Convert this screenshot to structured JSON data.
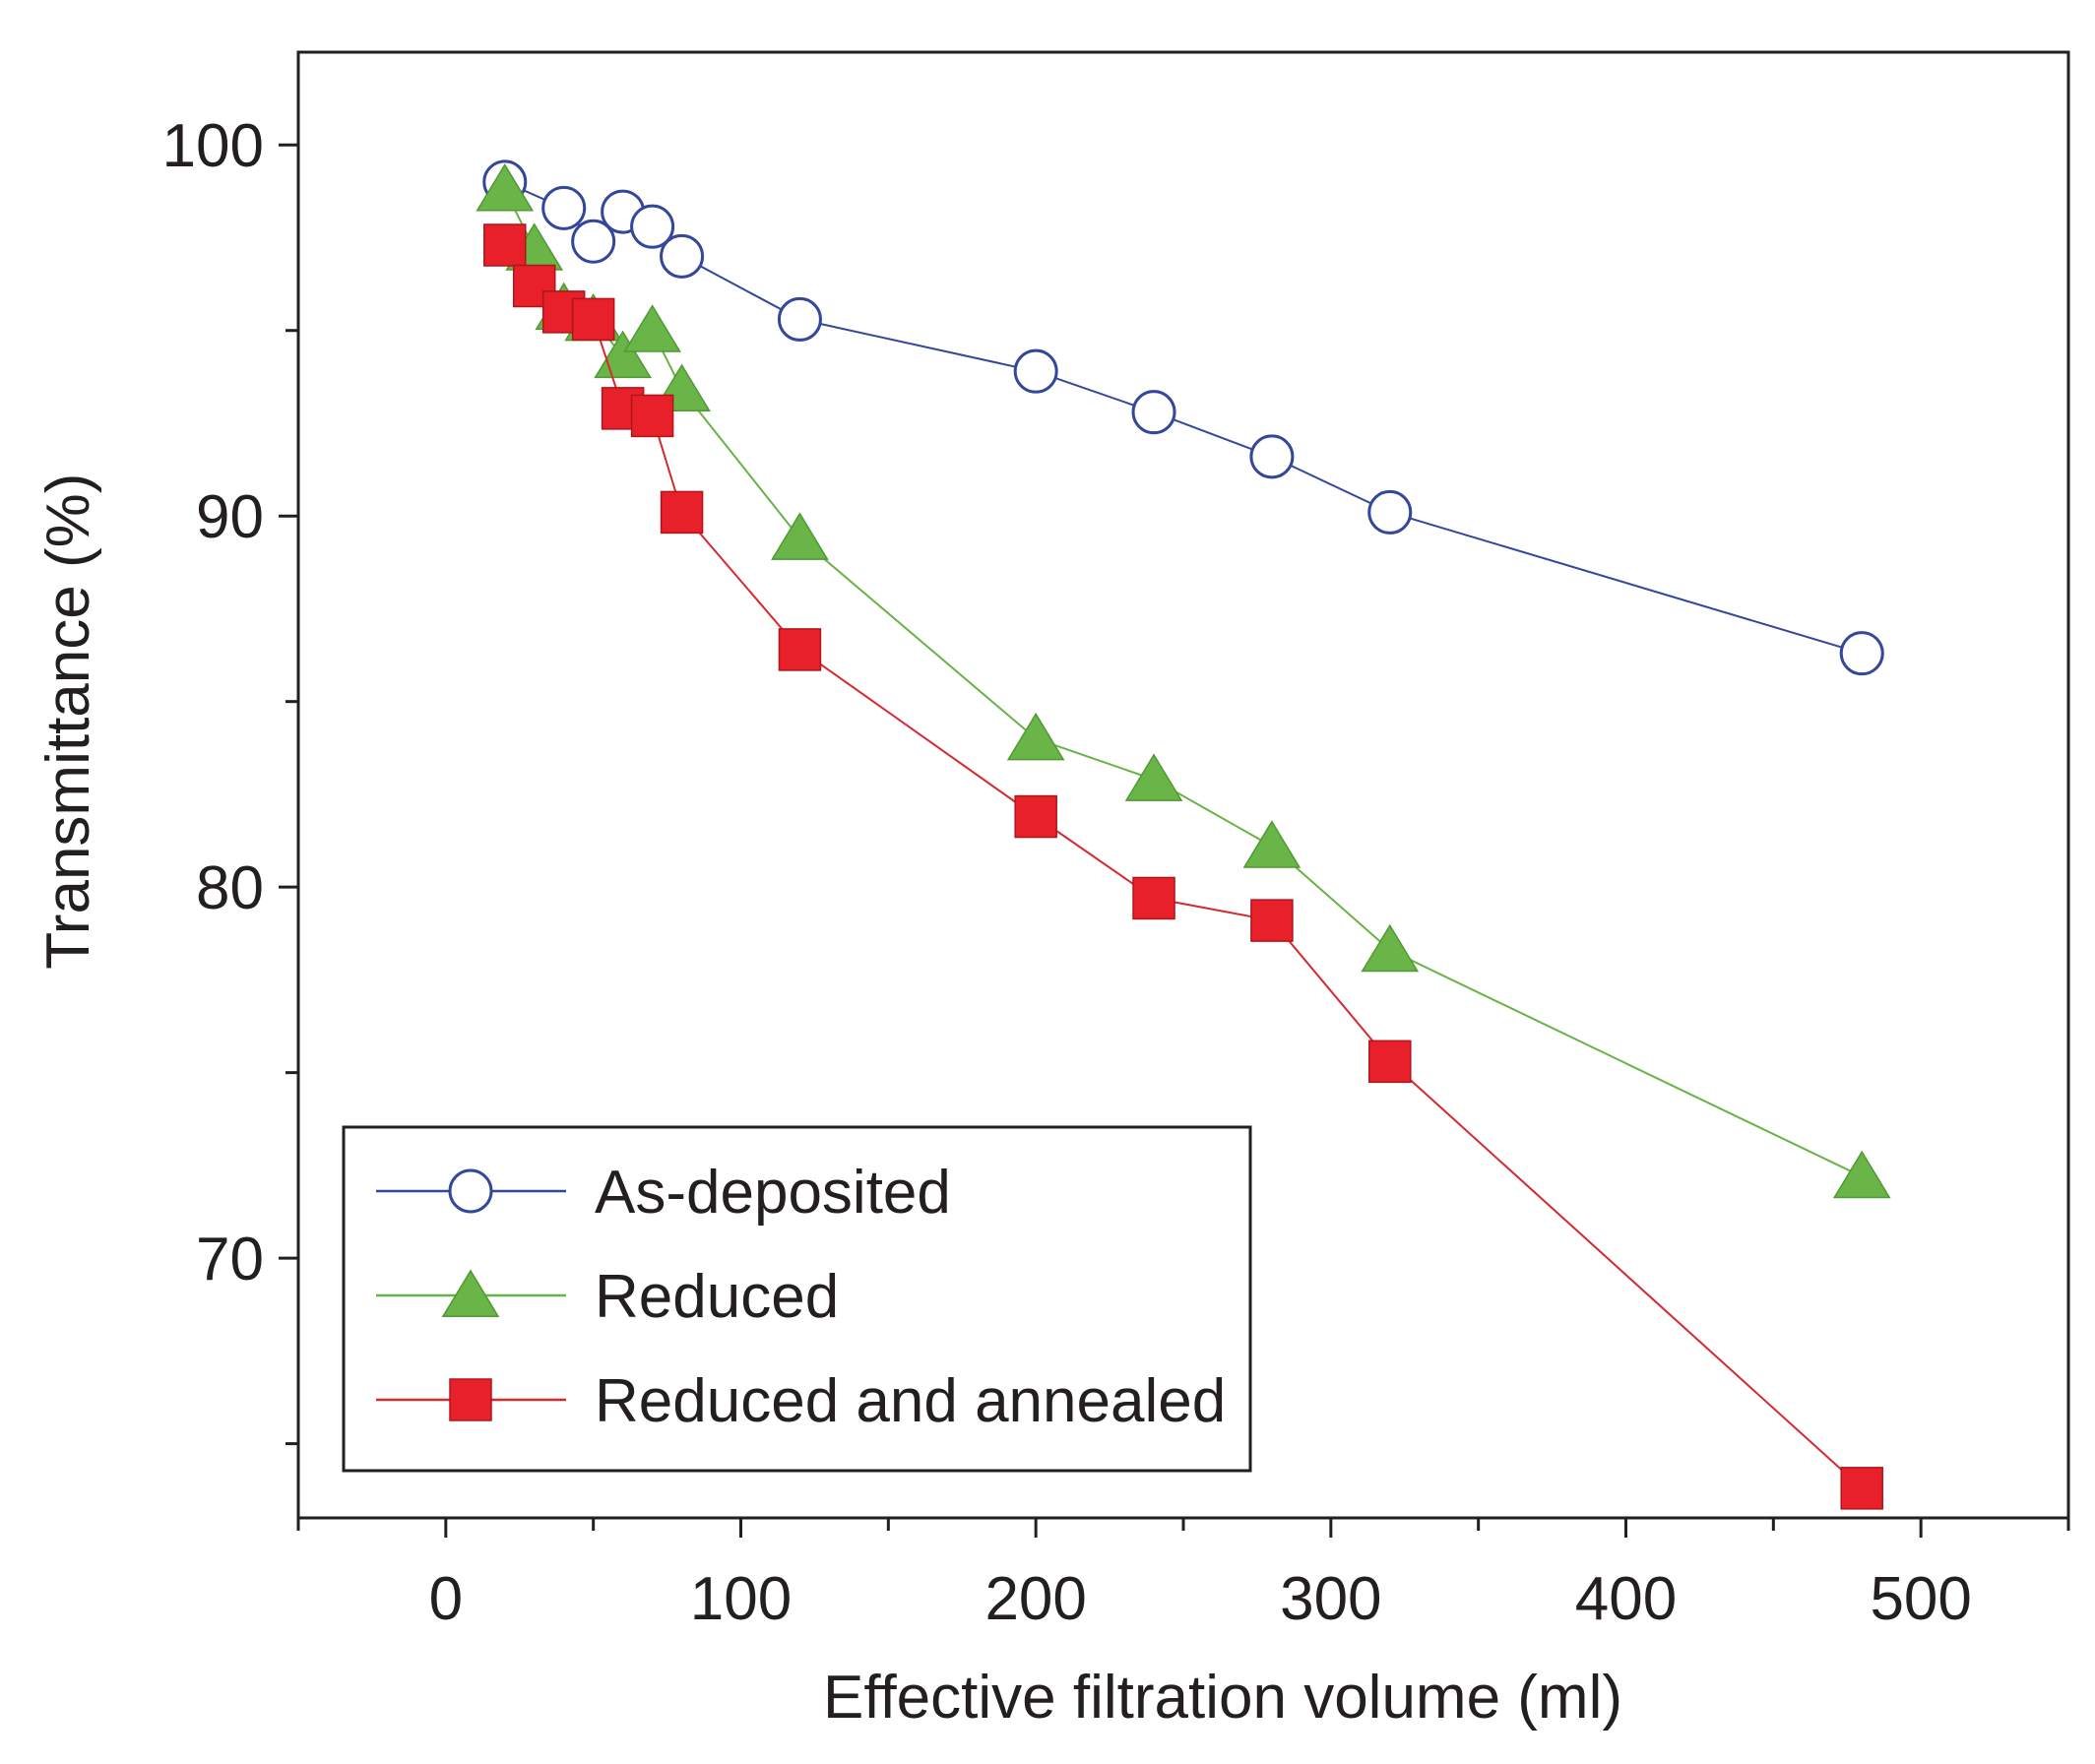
{
  "chart_data": {
    "type": "line",
    "xlabel": "Effective filtration volume (ml)",
    "ylabel": "Transmittance (%)",
    "xlim": [
      -50,
      550
    ],
    "ylim": [
      63,
      102.5
    ],
    "x_ticks": [
      0,
      100,
      200,
      300,
      400,
      500
    ],
    "x_minor_ticks": [
      -50,
      50,
      150,
      250,
      350,
      450,
      550
    ],
    "y_ticks": [
      70,
      80,
      90,
      100
    ],
    "y_minor_ticks": [
      65,
      75,
      85,
      95
    ],
    "grid": false,
    "legend_position": "bottom-left",
    "series": [
      {
        "name": "As-deposited",
        "color": "#33479b",
        "marker": "open-circle",
        "x": [
          20,
          40,
          50,
          60,
          70,
          80,
          120,
          200,
          240,
          280,
          320,
          480
        ],
        "y": [
          99.0,
          98.3,
          97.4,
          98.2,
          97.8,
          97.0,
          95.3,
          93.9,
          92.8,
          91.6,
          90.1,
          86.3
        ]
      },
      {
        "name": "Reduced",
        "color": "#67b346",
        "marker": "filled-triangle",
        "x": [
          20,
          30,
          40,
          50,
          60,
          70,
          80,
          120,
          200,
          240,
          280,
          320,
          480
        ],
        "y": [
          98.8,
          97.2,
          95.6,
          95.3,
          94.3,
          95.0,
          93.4,
          89.4,
          84.0,
          82.9,
          81.1,
          78.3,
          72.2
        ],
        "marker_fill": "#6ab547"
      },
      {
        "name": "Reduced and annealed",
        "color": "#d42a2f",
        "marker": "filled-square",
        "x": [
          20,
          30,
          40,
          50,
          60,
          70,
          80,
          120,
          200,
          240,
          280,
          320,
          480
        ],
        "y": [
          97.3,
          96.2,
          95.5,
          95.3,
          92.9,
          92.7,
          90.1,
          86.4,
          81.9,
          79.7,
          79.1,
          75.3,
          63.8
        ],
        "marker_fill": "#e8202a"
      }
    ]
  }
}
